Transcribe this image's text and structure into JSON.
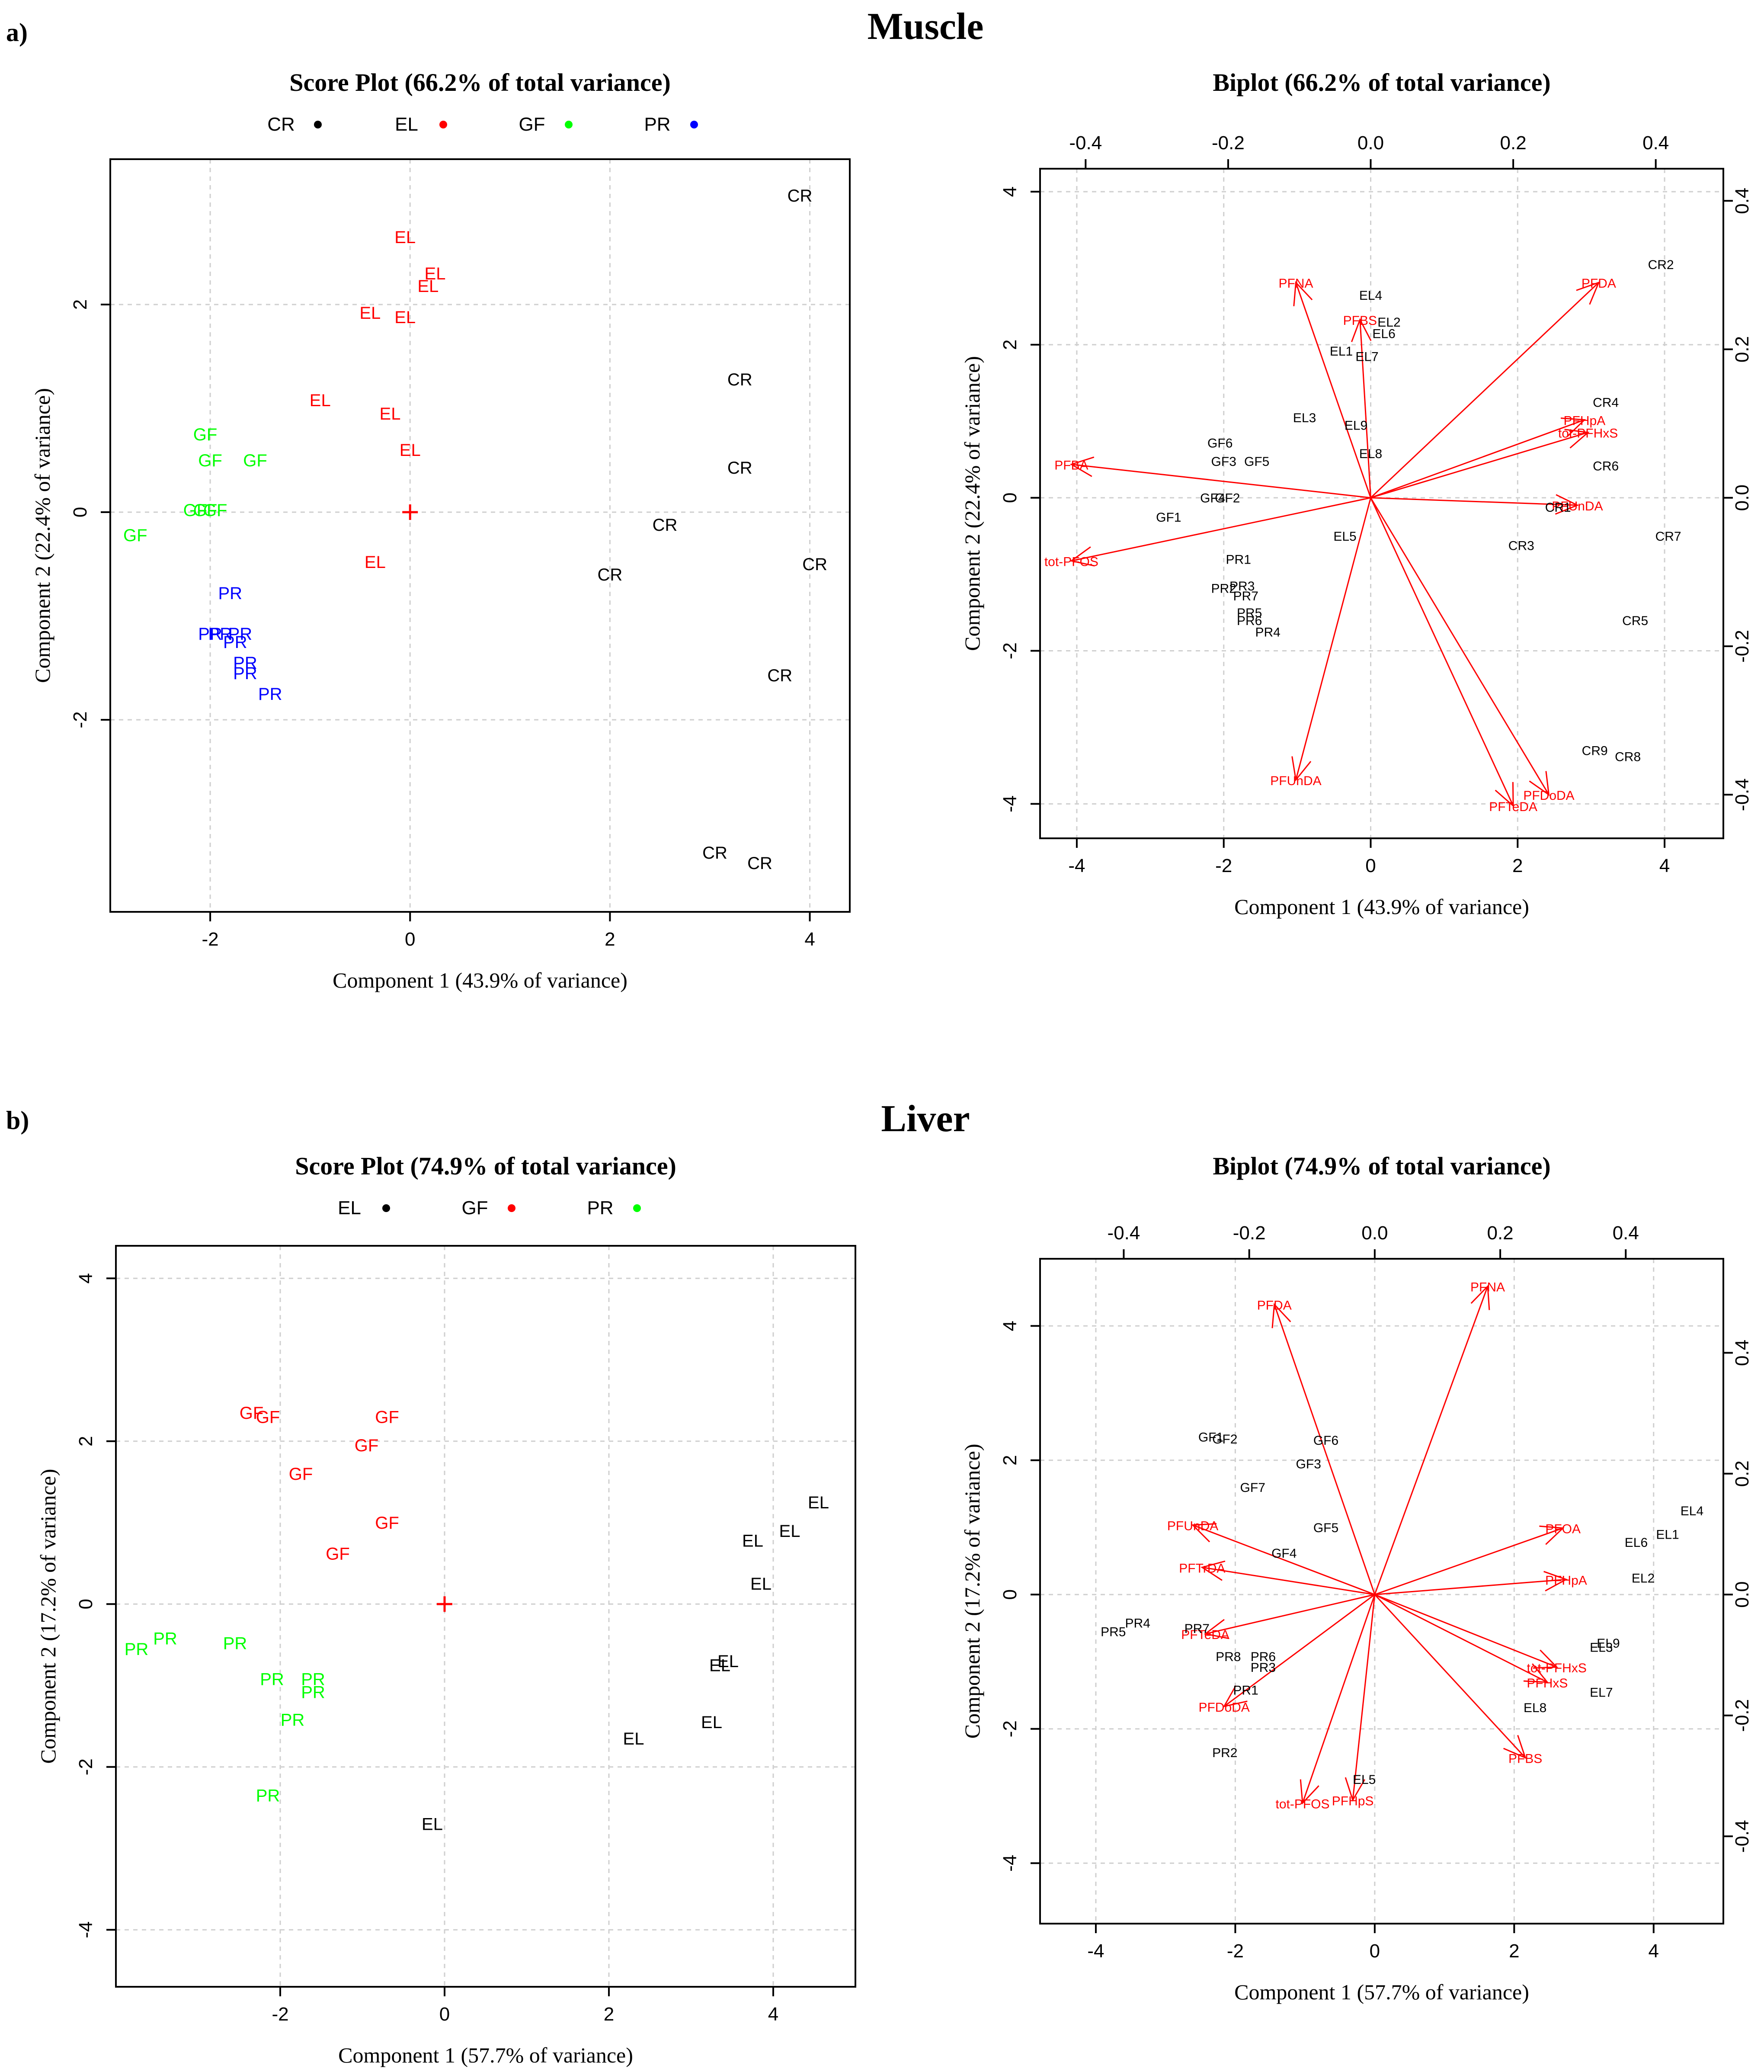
{
  "panel_labels": {
    "a": "a)",
    "b": "b)"
  },
  "section_titles": {
    "muscle": "Muscle",
    "liver": "Liver"
  },
  "chart_data": [
    {
      "id": "muscle-score",
      "type": "scatter",
      "title": "Score Plot (66.2% of total variance)",
      "xlabel": "Component 1 (43.9% of variance)",
      "ylabel": "Component 2 (22.4% of variance)",
      "xlim": [
        -3.0,
        4.4
      ],
      "ylim": [
        -3.85,
        3.4
      ],
      "xticks": [
        -2,
        0,
        2,
        4
      ],
      "yticks": [
        -2,
        0,
        2
      ],
      "grid": true,
      "legend_position": "top",
      "legend": [
        {
          "label": "CR",
          "color": "#000000"
        },
        {
          "label": "EL",
          "color": "#ff0000"
        },
        {
          "label": "GF",
          "color": "#00ff00"
        },
        {
          "label": "PR",
          "color": "#0000ff"
        }
      ],
      "center_marker": [
        0,
        0
      ],
      "groups": [
        {
          "name": "CR",
          "color": "#000000",
          "points": [
            [
              3.9,
              3.05
            ],
            [
              3.3,
              1.28
            ],
            [
              3.3,
              0.43
            ],
            [
              2.55,
              -0.12
            ],
            [
              2.0,
              -0.6
            ],
            [
              4.05,
              -0.5
            ],
            [
              3.7,
              -1.57
            ],
            [
              3.05,
              -3.28
            ],
            [
              3.5,
              -3.38
            ]
          ]
        },
        {
          "name": "EL",
          "color": "#ff0000",
          "points": [
            [
              -0.05,
              2.65
            ],
            [
              0.25,
              2.3
            ],
            [
              0.18,
              2.18
            ],
            [
              -0.4,
              1.92
            ],
            [
              -0.05,
              1.88
            ],
            [
              -0.9,
              1.08
            ],
            [
              -0.2,
              0.95
            ],
            [
              0.0,
              0.6
            ],
            [
              -0.35,
              -0.48
            ]
          ]
        },
        {
          "name": "GF",
          "color": "#00ff00",
          "points": [
            [
              -2.05,
              0.75
            ],
            [
              -2.0,
              0.5
            ],
            [
              -1.55,
              0.5
            ],
            [
              -2.15,
              0.02
            ],
            [
              -2.05,
              0.02
            ],
            [
              -1.95,
              0.02
            ],
            [
              -2.75,
              -0.22
            ]
          ]
        },
        {
          "name": "PR",
          "color": "#0000ff",
          "points": [
            [
              -1.8,
              -0.78
            ],
            [
              -2.0,
              -1.17
            ],
            [
              -1.9,
              -1.17
            ],
            [
              -1.7,
              -1.17
            ],
            [
              -1.75,
              -1.25
            ],
            [
              -1.65,
              -1.45
            ],
            [
              -1.65,
              -1.55
            ],
            [
              -1.4,
              -1.75
            ]
          ]
        }
      ]
    },
    {
      "id": "muscle-biplot",
      "type": "scatter",
      "title": "Biplot (66.2% of total variance)",
      "xlabel": "Component 1 (43.9% of variance)",
      "ylabel": "Component 2 (22.4% of variance)",
      "xlim": [
        -4.5,
        4.8
      ],
      "ylim": [
        -4.45,
        4.3
      ],
      "xticks": [
        -4,
        -2,
        0,
        2,
        4
      ],
      "yticks": [
        -4,
        -2,
        0,
        2,
        4
      ],
      "top_ticks": [
        -0.4,
        -0.2,
        0.0,
        0.2,
        0.4
      ],
      "right_ticks": [
        -0.4,
        -0.2,
        0.0,
        0.2,
        0.4
      ],
      "loading_scale": 9.7,
      "grid": true,
      "scores": [
        {
          "label": "CR2",
          "xy": [
            3.95,
            3.05
          ]
        },
        {
          "label": "CR4",
          "xy": [
            3.2,
            1.25
          ]
        },
        {
          "label": "CR6",
          "xy": [
            3.2,
            0.42
          ]
        },
        {
          "label": "CR1",
          "xy": [
            2.55,
            -0.12
          ]
        },
        {
          "label": "CR3",
          "xy": [
            2.05,
            -0.62
          ]
        },
        {
          "label": "CR7",
          "xy": [
            4.05,
            -0.5
          ]
        },
        {
          "label": "CR5",
          "xy": [
            3.6,
            -1.6
          ]
        },
        {
          "label": "CR9",
          "xy": [
            3.05,
            -3.3
          ]
        },
        {
          "label": "CR8",
          "xy": [
            3.5,
            -3.38
          ]
        },
        {
          "label": "EL4",
          "xy": [
            0.0,
            2.65
          ]
        },
        {
          "label": "EL2",
          "xy": [
            0.25,
            2.3
          ]
        },
        {
          "label": "EL6",
          "xy": [
            0.18,
            2.15
          ]
        },
        {
          "label": "EL1",
          "xy": [
            -0.4,
            1.92
          ]
        },
        {
          "label": "EL7",
          "xy": [
            -0.05,
            1.85
          ]
        },
        {
          "label": "EL3",
          "xy": [
            -0.9,
            1.05
          ]
        },
        {
          "label": "EL9",
          "xy": [
            -0.2,
            0.95
          ]
        },
        {
          "label": "EL8",
          "xy": [
            0.0,
            0.58
          ]
        },
        {
          "label": "EL5",
          "xy": [
            -0.35,
            -0.5
          ]
        },
        {
          "label": "GF6",
          "xy": [
            -2.05,
            0.72
          ]
        },
        {
          "label": "GF3",
          "xy": [
            -2.0,
            0.48
          ]
        },
        {
          "label": "GF5",
          "xy": [
            -1.55,
            0.48
          ]
        },
        {
          "label": "GF4",
          "xy": [
            -2.15,
            0.0
          ]
        },
        {
          "label": "GF2",
          "xy": [
            -1.95,
            0.0
          ]
        },
        {
          "label": "GF1",
          "xy": [
            -2.75,
            -0.25
          ]
        },
        {
          "label": "PR1",
          "xy": [
            -1.8,
            -0.8
          ]
        },
        {
          "label": "PR3",
          "xy": [
            -1.75,
            -1.15
          ]
        },
        {
          "label": "PR2",
          "xy": [
            -2.0,
            -1.18
          ]
        },
        {
          "label": "PR7",
          "xy": [
            -1.7,
            -1.28
          ]
        },
        {
          "label": "PR5",
          "xy": [
            -1.65,
            -1.5
          ]
        },
        {
          "label": "PR6",
          "xy": [
            -1.65,
            -1.6
          ]
        },
        {
          "label": "PR4",
          "xy": [
            -1.4,
            -1.75
          ]
        }
      ],
      "loadings": [
        {
          "label": "PFNA",
          "xy": [
            -0.105,
            0.29
          ]
        },
        {
          "label": "PFBS",
          "xy": [
            -0.015,
            0.24
          ]
        },
        {
          "label": "PFDA",
          "xy": [
            0.32,
            0.29
          ]
        },
        {
          "label": "PFHpA",
          "xy": [
            0.3,
            0.105
          ]
        },
        {
          "label": "tot-PFHxS",
          "xy": [
            0.305,
            0.088
          ]
        },
        {
          "label": "PFBA",
          "xy": [
            -0.42,
            0.045
          ]
        },
        {
          "label": "PFUnDA",
          "xy": [
            0.29,
            -0.01
          ]
        },
        {
          "label": "tot-PFOS",
          "xy": [
            -0.42,
            -0.085
          ]
        },
        {
          "label": "PFUnDA",
          "xy": [
            -0.105,
            -0.38
          ]
        },
        {
          "label": "PFDoDA",
          "xy": [
            0.25,
            -0.4
          ]
        },
        {
          "label": "PFTeDA",
          "xy": [
            0.2,
            -0.415
          ]
        }
      ]
    },
    {
      "id": "liver-score",
      "type": "scatter",
      "title": "Score Plot (74.9% of total variance)",
      "xlabel": "Component 1 (57.7% of variance)",
      "ylabel": "Component 2 (17.2% of variance)",
      "xlim": [
        -4.0,
        5.0
      ],
      "ylim": [
        -4.7,
        4.4
      ],
      "xticks": [
        -2,
        0,
        2,
        4
      ],
      "yticks": [
        -4,
        -2,
        0,
        2,
        4
      ],
      "grid": true,
      "legend_position": "top",
      "legend": [
        {
          "label": "EL",
          "color": "#000000"
        },
        {
          "label": "GF",
          "color": "#ff0000"
        },
        {
          "label": "PR",
          "color": "#00ff00"
        }
      ],
      "center_marker": [
        0,
        0
      ],
      "groups": [
        {
          "name": "EL",
          "color": "#000000",
          "points": [
            [
              4.55,
              1.25
            ],
            [
              4.2,
              0.9
            ],
            [
              3.75,
              0.78
            ],
            [
              3.85,
              0.25
            ],
            [
              3.35,
              -0.75
            ],
            [
              3.45,
              -0.7
            ],
            [
              3.25,
              -1.45
            ],
            [
              2.3,
              -1.65
            ],
            [
              -0.15,
              -2.7
            ]
          ]
        },
        {
          "name": "GF",
          "color": "#ff0000",
          "points": [
            [
              -2.35,
              2.35
            ],
            [
              -2.15,
              2.3
            ],
            [
              -0.7,
              2.3
            ],
            [
              -0.95,
              1.95
            ],
            [
              -1.75,
              1.6
            ],
            [
              -0.7,
              1.0
            ],
            [
              -1.3,
              0.62
            ]
          ]
        },
        {
          "name": "PR",
          "color": "#00ff00",
          "points": [
            [
              -3.4,
              -0.42
            ],
            [
              -3.75,
              -0.55
            ],
            [
              -2.55,
              -0.48
            ],
            [
              -2.1,
              -0.92
            ],
            [
              -1.6,
              -0.92
            ],
            [
              -1.6,
              -1.08
            ],
            [
              -1.85,
              -1.42
            ],
            [
              -2.15,
              -2.35
            ]
          ]
        }
      ]
    },
    {
      "id": "liver-biplot",
      "type": "scatter",
      "title": "Biplot (74.9% of total variance)",
      "xlabel": "Component 1 (57.7% of variance)",
      "ylabel": "Component 2 (17.2% of variance)",
      "xlim": [
        -4.8,
        5.0
      ],
      "ylim": [
        -4.9,
        5.0
      ],
      "xticks": [
        -4,
        -2,
        0,
        2,
        4
      ],
      "yticks": [
        -4,
        -2,
        0,
        2,
        4
      ],
      "top_ticks": [
        -0.4,
        -0.2,
        0.0,
        0.2,
        0.4
      ],
      "right_ticks": [
        -0.4,
        -0.2,
        0.0,
        0.2,
        0.4
      ],
      "loading_scale": 9.0,
      "grid": true,
      "scores": [
        {
          "label": "EL4",
          "xy": [
            4.55,
            1.25
          ]
        },
        {
          "label": "EL1",
          "xy": [
            4.2,
            0.9
          ]
        },
        {
          "label": "EL6",
          "xy": [
            3.75,
            0.78
          ]
        },
        {
          "label": "EL2",
          "xy": [
            3.85,
            0.25
          ]
        },
        {
          "label": "EL9",
          "xy": [
            3.35,
            -0.72
          ]
        },
        {
          "label": "EL3",
          "xy": [
            3.25,
            -0.78
          ]
        },
        {
          "label": "EL7",
          "xy": [
            3.25,
            -1.45
          ]
        },
        {
          "label": "EL8",
          "xy": [
            2.3,
            -1.68
          ]
        },
        {
          "label": "EL5",
          "xy": [
            -0.15,
            -2.75
          ]
        },
        {
          "label": "GF1",
          "xy": [
            -2.35,
            2.35
          ]
        },
        {
          "label": "GF2",
          "xy": [
            -2.15,
            2.32
          ]
        },
        {
          "label": "GF6",
          "xy": [
            -0.7,
            2.3
          ]
        },
        {
          "label": "GF3",
          "xy": [
            -0.95,
            1.95
          ]
        },
        {
          "label": "GF7",
          "xy": [
            -1.75,
            1.6
          ]
        },
        {
          "label": "GF5",
          "xy": [
            -0.7,
            1.0
          ]
        },
        {
          "label": "GF4",
          "xy": [
            -1.3,
            0.62
          ]
        },
        {
          "label": "PR4",
          "xy": [
            -3.4,
            -0.42
          ]
        },
        {
          "label": "PR5",
          "xy": [
            -3.75,
            -0.55
          ]
        },
        {
          "label": "PR7",
          "xy": [
            -2.55,
            -0.5
          ]
        },
        {
          "label": "PR8",
          "xy": [
            -2.1,
            -0.92
          ]
        },
        {
          "label": "PR6",
          "xy": [
            -1.6,
            -0.92
          ]
        },
        {
          "label": "PR3",
          "xy": [
            -1.6,
            -1.08
          ]
        },
        {
          "label": "PR1",
          "xy": [
            -1.85,
            -1.42
          ]
        },
        {
          "label": "PR2",
          "xy": [
            -2.15,
            -2.35
          ]
        }
      ],
      "loadings": [
        {
          "label": "PFDA",
          "xy": [
            -0.16,
            0.48
          ]
        },
        {
          "label": "PFNA",
          "xy": [
            0.18,
            0.51
          ]
        },
        {
          "label": "PFUnDA",
          "xy": [
            -0.29,
            0.115
          ]
        },
        {
          "label": "PFOA",
          "xy": [
            0.3,
            0.11
          ]
        },
        {
          "label": "PFTrDA",
          "xy": [
            -0.275,
            0.045
          ]
        },
        {
          "label": "PFHpA",
          "xy": [
            0.305,
            0.025
          ]
        },
        {
          "label": "PFTeDA",
          "xy": [
            -0.27,
            -0.065
          ]
        },
        {
          "label": "tot-PFHxS",
          "xy": [
            0.29,
            -0.12
          ]
        },
        {
          "label": "PFDoDA",
          "xy": [
            -0.24,
            -0.185
          ]
        },
        {
          "label": "PFHxS",
          "xy": [
            0.275,
            -0.145
          ]
        },
        {
          "label": "PFBS",
          "xy": [
            0.24,
            -0.27
          ]
        },
        {
          "label": "tot-PFOS",
          "xy": [
            -0.115,
            -0.345
          ]
        },
        {
          "label": "PFHpS",
          "xy": [
            -0.035,
            -0.34
          ]
        }
      ]
    }
  ]
}
